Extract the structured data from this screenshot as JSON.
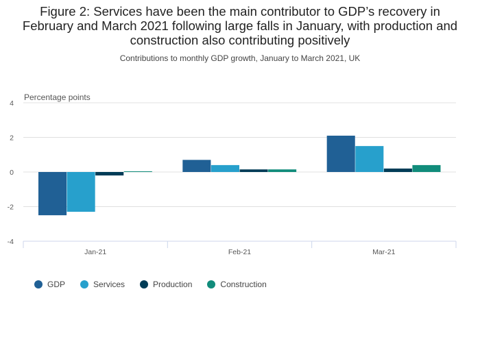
{
  "title": "Figure 2: Services have been the main contributor to GDP’s recovery in February and March 2021 following large falls in January, with production and construction also contributing positively",
  "subtitle": "Contributions to monthly GDP growth, January to March 2021, UK",
  "colors": {
    "GDP": "#206095",
    "Services": "#27a0cc",
    "Production": "#003c57",
    "Construction": "#118c7b"
  },
  "chart_data": {
    "type": "bar",
    "ylabel": "Percentage points",
    "ylim": [
      -4,
      4
    ],
    "yticks": [
      -4,
      -2,
      0,
      2,
      4
    ],
    "categories": [
      "Jan-21",
      "Feb-21",
      "Mar-21"
    ],
    "series": [
      {
        "name": "GDP",
        "values": [
          -2.5,
          0.7,
          2.1
        ]
      },
      {
        "name": "Services",
        "values": [
          -2.3,
          0.4,
          1.5
        ]
      },
      {
        "name": "Production",
        "values": [
          -0.2,
          0.15,
          0.2
        ]
      },
      {
        "name": "Construction",
        "values": [
          0.04,
          0.15,
          0.4
        ]
      }
    ],
    "grid": true,
    "legend": "bottom-left"
  }
}
